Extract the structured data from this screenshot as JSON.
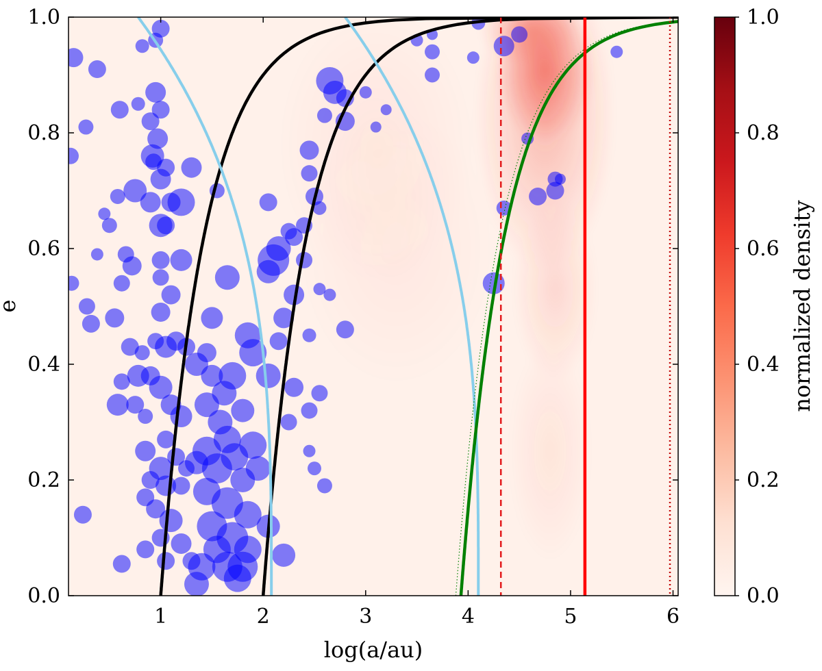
{
  "chart_data": {
    "type": "scatter",
    "xlabel": "log(a/au)",
    "ylabel": "e",
    "xlim": [
      0.1,
      6.05
    ],
    "ylim": [
      0.0,
      1.0
    ],
    "x_ticks": [
      1,
      2,
      3,
      4,
      5,
      6
    ],
    "x_tick_labels": [
      "1",
      "2",
      "3",
      "4",
      "5",
      "6"
    ],
    "y_ticks": [
      0.0,
      0.2,
      0.4,
      0.6,
      0.8,
      1.0
    ],
    "y_tick_labels": [
      "0.0",
      "0.2",
      "0.4",
      "0.6",
      "0.8",
      "1.0"
    ],
    "colorbar": {
      "label": "normalized density",
      "ticks": [
        0.0,
        0.2,
        0.4,
        0.6,
        0.8,
        1.0
      ],
      "tick_labels": [
        "0.0",
        "0.2",
        "0.4",
        "0.6",
        "0.8",
        "1.0"
      ],
      "color_min": "#fff5f0",
      "color_max": "#67000d"
    },
    "density_blobs": [
      {
        "x": 4.75,
        "y": 0.91,
        "sx": 0.3,
        "sy": 0.08,
        "level": 0.55
      },
      {
        "x": 4.75,
        "y": 0.83,
        "sx": 0.42,
        "sy": 0.17,
        "level": 0.3
      },
      {
        "x": 4.85,
        "y": 0.53,
        "sx": 0.25,
        "sy": 0.1,
        "level": 0.14
      },
      {
        "x": 4.8,
        "y": 0.25,
        "sx": 0.25,
        "sy": 0.12,
        "level": 0.07
      },
      {
        "x": 3.1,
        "y": 0.78,
        "sx": 0.6,
        "sy": 0.15,
        "level": 0.05
      },
      {
        "x": 3.3,
        "y": 0.6,
        "sx": 0.6,
        "sy": 0.15,
        "level": 0.04
      },
      {
        "x": 4.6,
        "y": 0.98,
        "sx": 0.3,
        "sy": 0.04,
        "level": 0.35
      }
    ],
    "series": [
      {
        "name": "periapsis curve 1",
        "style": "black-solid",
        "a_log": 1.0,
        "color": "#000000"
      },
      {
        "name": "periapsis curve 2",
        "style": "black-solid",
        "a_log": 2.0,
        "color": "#000000"
      },
      {
        "name": "apoapsis curve 1",
        "style": "skyblue-solid",
        "a_log": 2.08,
        "color": "#87ceeb"
      },
      {
        "name": "apoapsis curve 2",
        "style": "skyblue-solid",
        "a_log": 4.1,
        "color": "#87ceeb"
      },
      {
        "name": "green curve",
        "style": "green-solid",
        "a_log": 3.93,
        "color": "#008000"
      },
      {
        "name": "green dotted curve",
        "style": "green-dotted",
        "a_log": 3.88,
        "color": "#008000"
      },
      {
        "name": "red dashed line",
        "style": "red-dashed",
        "x": 4.32,
        "color": "#e31a1c"
      },
      {
        "name": "red solid line",
        "style": "red-solid",
        "x": 5.14,
        "color": "#ff0000"
      },
      {
        "name": "red dotted line",
        "style": "red-dotted",
        "x": 5.97,
        "color": "#c00000"
      }
    ],
    "points": [
      [
        0.15,
        0.93,
        14
      ],
      [
        0.38,
        0.91,
        13
      ],
      [
        0.12,
        0.76,
        12
      ],
      [
        0.27,
        0.81,
        11
      ],
      [
        0.38,
        0.59,
        9
      ],
      [
        0.13,
        0.54,
        11
      ],
      [
        0.28,
        0.5,
        12
      ],
      [
        0.32,
        0.47,
        13
      ],
      [
        0.24,
        0.14,
        13
      ],
      [
        0.5,
        0.64,
        11
      ],
      [
        0.45,
        0.66,
        9
      ],
      [
        0.6,
        0.84,
        13
      ],
      [
        0.58,
        0.69,
        11
      ],
      [
        0.75,
        0.7,
        17
      ],
      [
        0.66,
        0.59,
        12
      ],
      [
        0.72,
        0.57,
        14
      ],
      [
        0.62,
        0.54,
        12
      ],
      [
        0.55,
        0.48,
        14
      ],
      [
        0.7,
        0.43,
        13
      ],
      [
        0.82,
        0.42,
        11
      ],
      [
        0.78,
        0.38,
        16
      ],
      [
        0.62,
        0.37,
        12
      ],
      [
        0.75,
        0.33,
        13
      ],
      [
        0.58,
        0.33,
        16
      ],
      [
        0.85,
        0.31,
        11
      ],
      [
        0.62,
        0.055,
        13
      ],
      [
        0.82,
        0.95,
        10
      ],
      [
        0.95,
        0.96,
        11
      ],
      [
        1.0,
        0.98,
        13
      ],
      [
        0.78,
        0.85,
        10
      ],
      [
        0.95,
        0.87,
        15
      ],
      [
        0.9,
        0.82,
        13
      ],
      [
        1.0,
        0.84,
        13
      ],
      [
        0.97,
        0.79,
        15
      ],
      [
        0.92,
        0.76,
        17
      ],
      [
        0.93,
        0.75,
        12
      ],
      [
        1.0,
        0.72,
        15
      ],
      [
        1.05,
        0.74,
        13
      ],
      [
        0.9,
        0.68,
        15
      ],
      [
        1.1,
        0.68,
        14
      ],
      [
        1.0,
        0.64,
        17
      ],
      [
        1.2,
        0.68,
        20
      ],
      [
        1.05,
        0.64,
        13
      ],
      [
        1.0,
        0.58,
        13
      ],
      [
        1.2,
        0.58,
        16
      ],
      [
        1.0,
        0.55,
        12
      ],
      [
        1.1,
        0.52,
        14
      ],
      [
        1.0,
        0.49,
        14
      ],
      [
        0.95,
        0.44,
        12
      ],
      [
        1.05,
        0.43,
        16
      ],
      [
        1.15,
        0.44,
        14
      ],
      [
        1.25,
        0.43,
        13
      ],
      [
        0.9,
        0.38,
        14
      ],
      [
        1.0,
        0.36,
        17
      ],
      [
        1.1,
        0.33,
        15
      ],
      [
        1.2,
        0.31,
        16
      ],
      [
        1.05,
        0.27,
        13
      ],
      [
        0.85,
        0.25,
        15
      ],
      [
        1.0,
        0.22,
        17
      ],
      [
        1.15,
        0.24,
        13
      ],
      [
        1.25,
        0.22,
        12
      ],
      [
        0.9,
        0.2,
        13
      ],
      [
        1.05,
        0.19,
        15
      ],
      [
        1.2,
        0.19,
        13
      ],
      [
        0.85,
        0.17,
        13
      ],
      [
        0.95,
        0.15,
        14
      ],
      [
        1.1,
        0.13,
        17
      ],
      [
        1.0,
        0.1,
        13
      ],
      [
        0.85,
        0.08,
        13
      ],
      [
        1.2,
        0.09,
        15
      ],
      [
        1.05,
        0.06,
        13
      ],
      [
        1.3,
        0.06,
        13
      ],
      [
        1.3,
        0.74,
        15
      ],
      [
        1.55,
        0.7,
        11
      ],
      [
        1.65,
        0.55,
        18
      ],
      [
        1.5,
        0.48,
        16
      ],
      [
        1.45,
        0.42,
        14
      ],
      [
        1.35,
        0.4,
        17
      ],
      [
        1.5,
        0.38,
        16
      ],
      [
        1.62,
        0.35,
        18
      ],
      [
        1.7,
        0.38,
        20
      ],
      [
        1.45,
        0.33,
        18
      ],
      [
        1.58,
        0.3,
        18
      ],
      [
        1.65,
        0.27,
        20
      ],
      [
        1.45,
        0.25,
        21
      ],
      [
        1.35,
        0.23,
        17
      ],
      [
        1.55,
        0.22,
        22
      ],
      [
        1.72,
        0.24,
        20
      ],
      [
        1.8,
        0.2,
        18
      ],
      [
        1.45,
        0.18,
        20
      ],
      [
        1.65,
        0.16,
        23
      ],
      [
        1.85,
        0.14,
        20
      ],
      [
        1.5,
        0.12,
        22
      ],
      [
        1.7,
        0.1,
        23
      ],
      [
        1.85,
        0.08,
        20
      ],
      [
        1.55,
        0.08,
        20
      ],
      [
        1.65,
        0.05,
        22
      ],
      [
        1.8,
        0.05,
        22
      ],
      [
        1.4,
        0.05,
        20
      ],
      [
        1.75,
        0.03,
        20
      ],
      [
        1.35,
        0.02,
        18
      ],
      [
        1.8,
        0.32,
        17
      ],
      [
        1.9,
        0.26,
        20
      ],
      [
        1.95,
        0.22,
        18
      ],
      [
        2.05,
        0.12,
        17
      ],
      [
        2.2,
        0.07,
        17
      ],
      [
        1.9,
        0.42,
        20
      ],
      [
        1.85,
        0.45,
        19
      ],
      [
        2.05,
        0.38,
        18
      ],
      [
        2.3,
        0.36,
        14
      ],
      [
        2.15,
        0.44,
        13
      ],
      [
        2.2,
        0.48,
        15
      ],
      [
        2.3,
        0.52,
        15
      ],
      [
        2.4,
        0.58,
        12
      ],
      [
        2.05,
        0.56,
        17
      ],
      [
        2.1,
        0.58,
        23
      ],
      [
        2.15,
        0.6,
        18
      ],
      [
        2.3,
        0.62,
        13
      ],
      [
        2.4,
        0.64,
        12
      ],
      [
        2.5,
        0.69,
        13
      ],
      [
        2.45,
        0.73,
        12
      ],
      [
        2.55,
        0.67,
        10
      ],
      [
        2.45,
        0.77,
        14
      ],
      [
        2.6,
        0.83,
        11
      ],
      [
        2.65,
        0.89,
        20
      ],
      [
        2.8,
        0.86,
        13
      ],
      [
        2.7,
        0.87,
        17
      ],
      [
        2.8,
        0.82,
        14
      ],
      [
        2.8,
        0.46,
        13
      ],
      [
        2.55,
        0.35,
        12
      ],
      [
        2.45,
        0.32,
        12
      ],
      [
        2.5,
        0.22,
        10
      ],
      [
        2.6,
        0.19,
        11
      ],
      [
        2.55,
        0.53,
        9
      ],
      [
        2.65,
        0.52,
        9
      ],
      [
        2.45,
        0.45,
        10
      ],
      [
        2.45,
        0.25,
        9
      ],
      [
        2.25,
        0.3,
        12
      ],
      [
        2.05,
        0.68,
        13
      ],
      [
        2.25,
        0.63,
        12
      ],
      [
        3.0,
        0.87,
        9
      ],
      [
        3.2,
        0.84,
        8
      ],
      [
        3.1,
        0.81,
        8
      ],
      [
        3.5,
        0.96,
        9
      ],
      [
        3.65,
        0.97,
        8
      ],
      [
        3.65,
        0.94,
        11
      ],
      [
        4.05,
        0.93,
        9
      ],
      [
        3.65,
        0.9,
        11
      ],
      [
        4.1,
        0.99,
        10
      ],
      [
        4.35,
        0.95,
        15
      ],
      [
        4.5,
        0.97,
        12
      ],
      [
        4.35,
        0.67,
        11
      ],
      [
        4.25,
        0.54,
        16
      ],
      [
        4.58,
        0.79,
        9
      ],
      [
        4.68,
        0.69,
        13
      ],
      [
        4.85,
        0.7,
        13
      ],
      [
        4.85,
        0.72,
        11
      ],
      [
        4.9,
        0.72,
        8
      ],
      [
        5.45,
        0.94,
        9
      ]
    ]
  }
}
